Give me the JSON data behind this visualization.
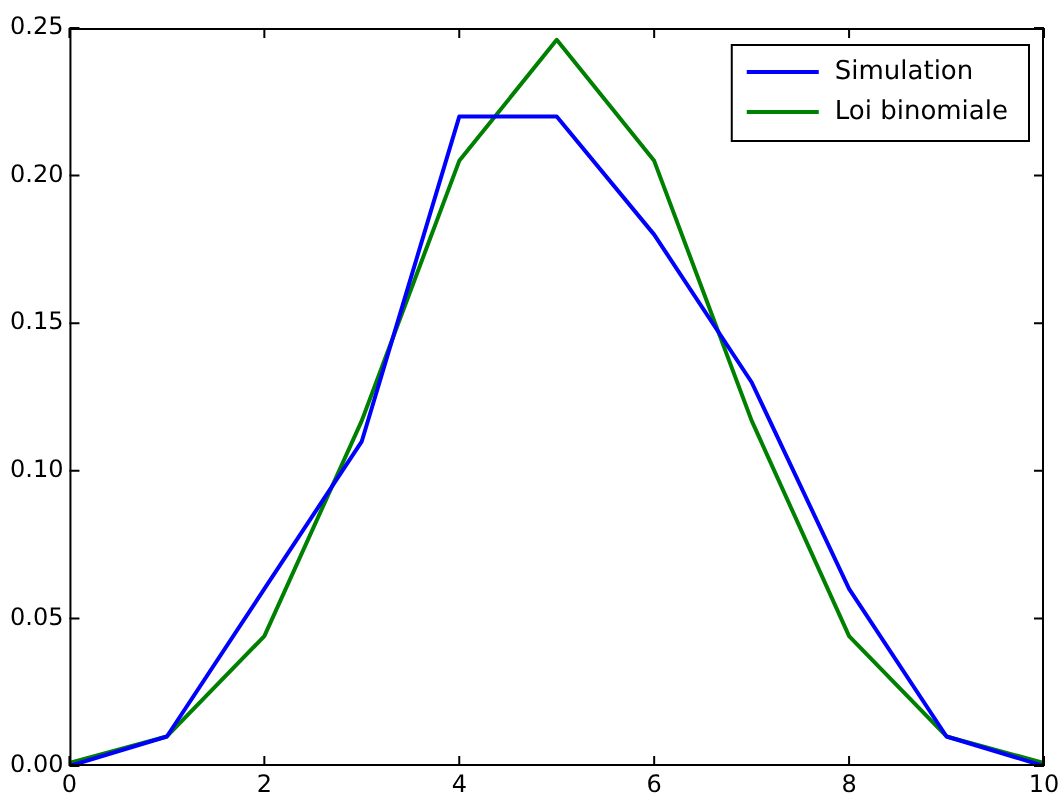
{
  "chart_data": {
    "type": "line",
    "xlim": [
      0,
      10
    ],
    "xticks": [
      0,
      2,
      4,
      6,
      8,
      10
    ],
    "ylim": [
      0,
      0.25
    ],
    "yticks": [
      {
        "value": 0,
        "label": "0.00"
      },
      {
        "value": 0.05,
        "label": "0.05"
      },
      {
        "value": 0.1,
        "label": "0.10"
      },
      {
        "value": 0.15,
        "label": "0.15"
      },
      {
        "value": 0.2,
        "label": "0.20"
      },
      {
        "value": 0.25,
        "label": "0.25"
      }
    ],
    "x": [
      0,
      1,
      2,
      3,
      4,
      5,
      6,
      7,
      8,
      9,
      10
    ],
    "series": [
      {
        "name": "Simulation",
        "color": "#0000ff",
        "values": [
          0,
          0.01,
          0.06,
          0.11,
          0.22,
          0.22,
          0.18,
          0.13,
          0.06,
          0.01,
          0
        ]
      },
      {
        "name": "Loi binomiale",
        "color": "#008000",
        "values": [
          0.001,
          0.01,
          0.044,
          0.117,
          0.205,
          0.246,
          0.205,
          0.117,
          0.044,
          0.01,
          0.001
        ]
      }
    ],
    "legend": "top right",
    "grid": false,
    "marker": "none",
    "line_style": "solid"
  }
}
